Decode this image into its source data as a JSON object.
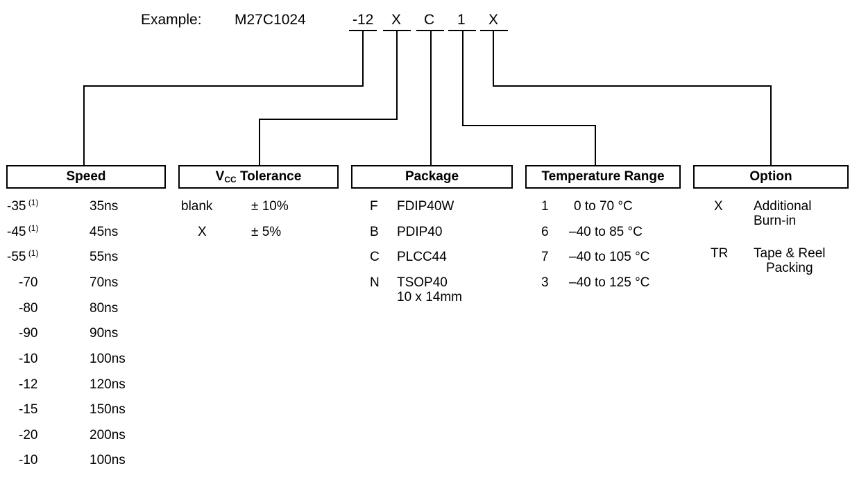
{
  "example": {
    "label": "Example:",
    "part": "M27C1024",
    "segments": [
      "-12",
      "X",
      "C",
      "1",
      "X"
    ]
  },
  "speed": {
    "title": "Speed",
    "footnote": "(1)",
    "rows": [
      {
        "code": "-35",
        "value": "35ns",
        "note": "(1)"
      },
      {
        "code": "-45",
        "value": "45ns",
        "note": "(1)"
      },
      {
        "code": "-55",
        "value": "55ns",
        "note": "(1)"
      },
      {
        "code": "-70",
        "value": "70ns"
      },
      {
        "code": "-80",
        "value": "80ns"
      },
      {
        "code": "-90",
        "value": "90ns"
      },
      {
        "code": "-10",
        "value": "100ns"
      },
      {
        "code": "-12",
        "value": "120ns"
      },
      {
        "code": "-15",
        "value": "150ns"
      },
      {
        "code": "-20",
        "value": "200ns"
      },
      {
        "code": "-10",
        "value": "100ns"
      }
    ]
  },
  "vcc": {
    "title_main": "V",
    "title_sub": "CC",
    "title_rest": " Tolerance",
    "rows": [
      {
        "code": "blank",
        "value": "± 10%"
      },
      {
        "code": "X",
        "value": "± 5%"
      }
    ]
  },
  "package": {
    "title": "Package",
    "rows": [
      {
        "code": "F",
        "value": "FDIP40W"
      },
      {
        "code": "B",
        "value": "PDIP40"
      },
      {
        "code": "C",
        "value": "PLCC44"
      },
      {
        "code": "N",
        "value": "TSOP40\n10 x 14mm"
      }
    ]
  },
  "temperature": {
    "title": "Temperature Range",
    "rows": [
      {
        "code": "1",
        "value": "0 to 70 °C"
      },
      {
        "code": "6",
        "value": "–40 to 85 °C"
      },
      {
        "code": "7",
        "value": "–40 to 105 °C"
      },
      {
        "code": "3",
        "value": "–40 to 125 °C"
      }
    ]
  },
  "option": {
    "title": "Option",
    "rows": [
      {
        "code": "X",
        "value": "Additional\nBurn-in"
      },
      {
        "code": "TR",
        "value": "Tape & Reel\nPacking"
      }
    ]
  }
}
